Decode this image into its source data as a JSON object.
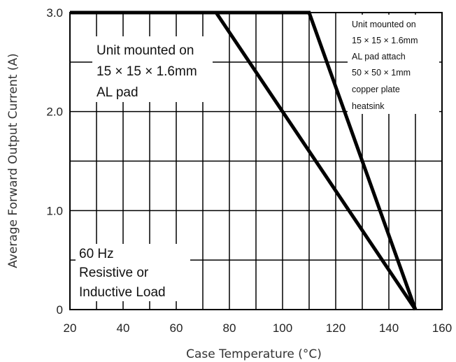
{
  "chart_data": {
    "type": "line",
    "xlabel": "Case Temperature (°C)",
    "ylabel": "Average Forward Output Current (A)",
    "xlim": [
      20,
      160
    ],
    "ylim": [
      0,
      3.0
    ],
    "x_ticks": [
      20,
      40,
      60,
      80,
      100,
      120,
      140,
      160
    ],
    "y_tick_labels": [
      {
        "value": 0,
        "label": "0"
      },
      {
        "value": 1.0,
        "label": "1.0"
      },
      {
        "value": 2.0,
        "label": "2.0"
      },
      {
        "value": 3.0,
        "label": "3.0"
      }
    ],
    "grid": true,
    "x_grid_step": 10,
    "y_grid_step": 0.5,
    "series": [
      {
        "x": [
          20,
          75,
          150
        ],
        "y": [
          3.0,
          3.0,
          0
        ]
      },
      {
        "x": [
          20,
          110,
          150
        ],
        "y": [
          3.0,
          3.0,
          0
        ]
      }
    ],
    "annotations": [
      {
        "lines": [
          "Unit mounted on",
          "15 × 15 × 1.6mm",
          "AL pad"
        ]
      },
      {
        "lines": [
          "Unit mounted on",
          "15 × 15 × 1.6mm",
          "AL pad attach",
          "50 × 50 × 1mm",
          "copper plate",
          "heatsink"
        ]
      },
      {
        "lines": [
          "60 Hz",
          "Resistive or",
          "Inductive Load"
        ]
      }
    ]
  }
}
